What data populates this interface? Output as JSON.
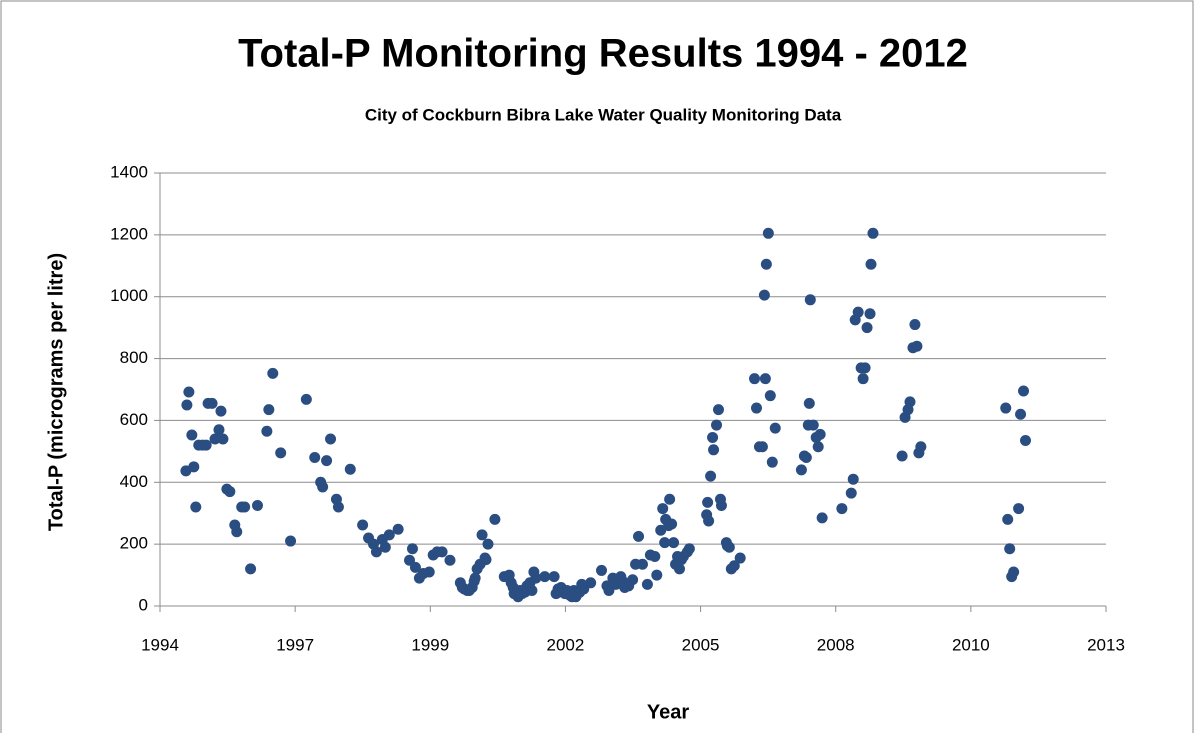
{
  "chart_data": {
    "type": "scatter",
    "title": "Total-P Monitoring Results 1994 - 2012",
    "subtitle": "City of Cockburn Bibra Lake Water Quality Monitoring Data",
    "xlabel": "Year",
    "ylabel": "Total-P (micrograms per litre)",
    "color": "#2b4e82",
    "grid": true,
    "xlim": [
      1994.455,
      2013.621
    ],
    "xticks": [
      {
        "value": 1994.455,
        "label": "1994"
      },
      {
        "value": 1997.193,
        "label": "1997"
      },
      {
        "value": 1999.931,
        "label": "1999"
      },
      {
        "value": 2002.669,
        "label": "2002"
      },
      {
        "value": 2005.407,
        "label": "2005"
      },
      {
        "value": 2008.145,
        "label": "2008"
      },
      {
        "value": 2010.883,
        "label": "2010"
      },
      {
        "value": 2013.621,
        "label": "2013"
      }
    ],
    "ylim": [
      0,
      1400
    ],
    "yticks": [
      0,
      200,
      400,
      600,
      800,
      1000,
      1200,
      1400
    ],
    "x": [
      1994.98,
      1995.0,
      1995.04,
      1995.1,
      1995.14,
      1995.18,
      1995.24,
      1995.32,
      1995.39,
      1995.43,
      1995.51,
      1995.57,
      1995.65,
      1995.69,
      1995.73,
      1995.81,
      1995.87,
      1995.97,
      1996.01,
      1996.11,
      1996.17,
      1996.29,
      1996.43,
      1996.62,
      1996.66,
      1996.74,
      1996.9,
      1997.1,
      1997.42,
      1997.59,
      1997.71,
      1997.75,
      1997.83,
      1997.91,
      1998.03,
      1998.07,
      1998.31,
      1998.56,
      1998.68,
      1998.78,
      1998.84,
      1998.96,
      1999.02,
      1999.1,
      1999.28,
      1999.51,
      1999.57,
      1999.63,
      1999.71,
      1999.79,
      1999.91,
      1999.99,
      2000.07,
      2000.17,
      2000.33,
      2000.54,
      2000.58,
      2000.62,
      2000.68,
      2000.72,
      2000.78,
      2000.82,
      2000.84,
      2000.88,
      2000.94,
      2000.98,
      2001.04,
      2001.06,
      2001.1,
      2001.24,
      2001.43,
      2001.53,
      2001.57,
      2001.61,
      2001.63,
      2001.67,
      2001.71,
      2001.75,
      2001.79,
      2001.85,
      2001.89,
      2001.95,
      2001.99,
      2002.03,
      2002.07,
      2002.25,
      2002.44,
      2002.48,
      2002.52,
      2002.58,
      2002.6,
      2002.66,
      2002.7,
      2002.76,
      2002.8,
      2002.84,
      2002.88,
      2002.92,
      2002.96,
      2003.0,
      2003.04,
      2003.18,
      2003.4,
      2003.51,
      2003.55,
      2003.63,
      2003.69,
      2003.73,
      2003.79,
      2003.83,
      2003.87,
      2003.95,
      2004.03,
      2004.09,
      2004.15,
      2004.23,
      2004.33,
      2004.39,
      2004.48,
      2004.52,
      2004.6,
      2004.64,
      2004.68,
      2004.7,
      2004.76,
      2004.78,
      2004.82,
      2004.86,
      2004.9,
      2004.94,
      2004.98,
      2005.02,
      2005.06,
      2005.14,
      2005.18,
      2005.53,
      2005.55,
      2005.57,
      2005.61,
      2005.65,
      2005.67,
      2005.73,
      2005.77,
      2005.81,
      2005.83,
      2005.93,
      2005.95,
      2005.99,
      2006.03,
      2006.09,
      2006.21,
      2006.5,
      2006.54,
      2006.6,
      2006.66,
      2006.7,
      2006.72,
      2006.74,
      2006.78,
      2006.82,
      2006.86,
      2006.92,
      2007.45,
      2007.51,
      2007.55,
      2007.59,
      2007.61,
      2007.63,
      2007.69,
      2007.75,
      2007.79,
      2007.83,
      2007.87,
      2008.27,
      2008.46,
      2008.5,
      2008.54,
      2008.6,
      2008.66,
      2008.7,
      2008.74,
      2008.78,
      2008.84,
      2008.86,
      2008.9,
      2009.49,
      2009.55,
      2009.61,
      2009.65,
      2009.71,
      2009.75,
      2009.79,
      2009.83,
      2009.87,
      2011.59,
      2011.63,
      2011.67,
      2011.71,
      2011.75,
      2011.85,
      2011.89,
      2011.95,
      2011.99
    ],
    "values": [
      437,
      650,
      692,
      553,
      450,
      320,
      520,
      520,
      520,
      655,
      655,
      540,
      570,
      630,
      540,
      378,
      370,
      262,
      240,
      320,
      320,
      120,
      325,
      565,
      635,
      752,
      495,
      210,
      668,
      480,
      400,
      385,
      470,
      540,
      345,
      320,
      442,
      262,
      220,
      200,
      175,
      215,
      190,
      230,
      248,
      148,
      185,
      125,
      90,
      105,
      110,
      165,
      175,
      175,
      148,
      75,
      60,
      55,
      50,
      50,
      60,
      80,
      90,
      120,
      135,
      230,
      155,
      150,
      200,
      280,
      95,
      100,
      75,
      60,
      40,
      45,
      30,
      50,
      40,
      45,
      65,
      75,
      50,
      110,
      90,
      95,
      95,
      40,
      55,
      60,
      45,
      40,
      50,
      35,
      30,
      50,
      30,
      40,
      45,
      70,
      55,
      75,
      115,
      65,
      50,
      90,
      70,
      75,
      95,
      80,
      60,
      65,
      85,
      135,
      225,
      135,
      70,
      165,
      160,
      100,
      245,
      315,
      205,
      280,
      260,
      345,
      265,
      205,
      135,
      160,
      120,
      150,
      160,
      175,
      185,
      295,
      335,
      275,
      420,
      545,
      505,
      585,
      635,
      345,
      325,
      205,
      195,
      190,
      120,
      130,
      155,
      735,
      640,
      515,
      515,
      1005,
      735,
      1105,
      1205,
      680,
      465,
      575,
      440,
      485,
      480,
      585,
      655,
      990,
      585,
      545,
      515,
      555,
      285,
      315,
      365,
      410,
      925,
      950,
      770,
      735,
      770,
      900,
      945,
      1105,
      1205,
      485,
      610,
      635,
      660,
      835,
      910,
      840,
      495,
      515,
      640,
      280,
      185,
      95,
      110,
      315,
      620,
      695,
      535
    ]
  }
}
